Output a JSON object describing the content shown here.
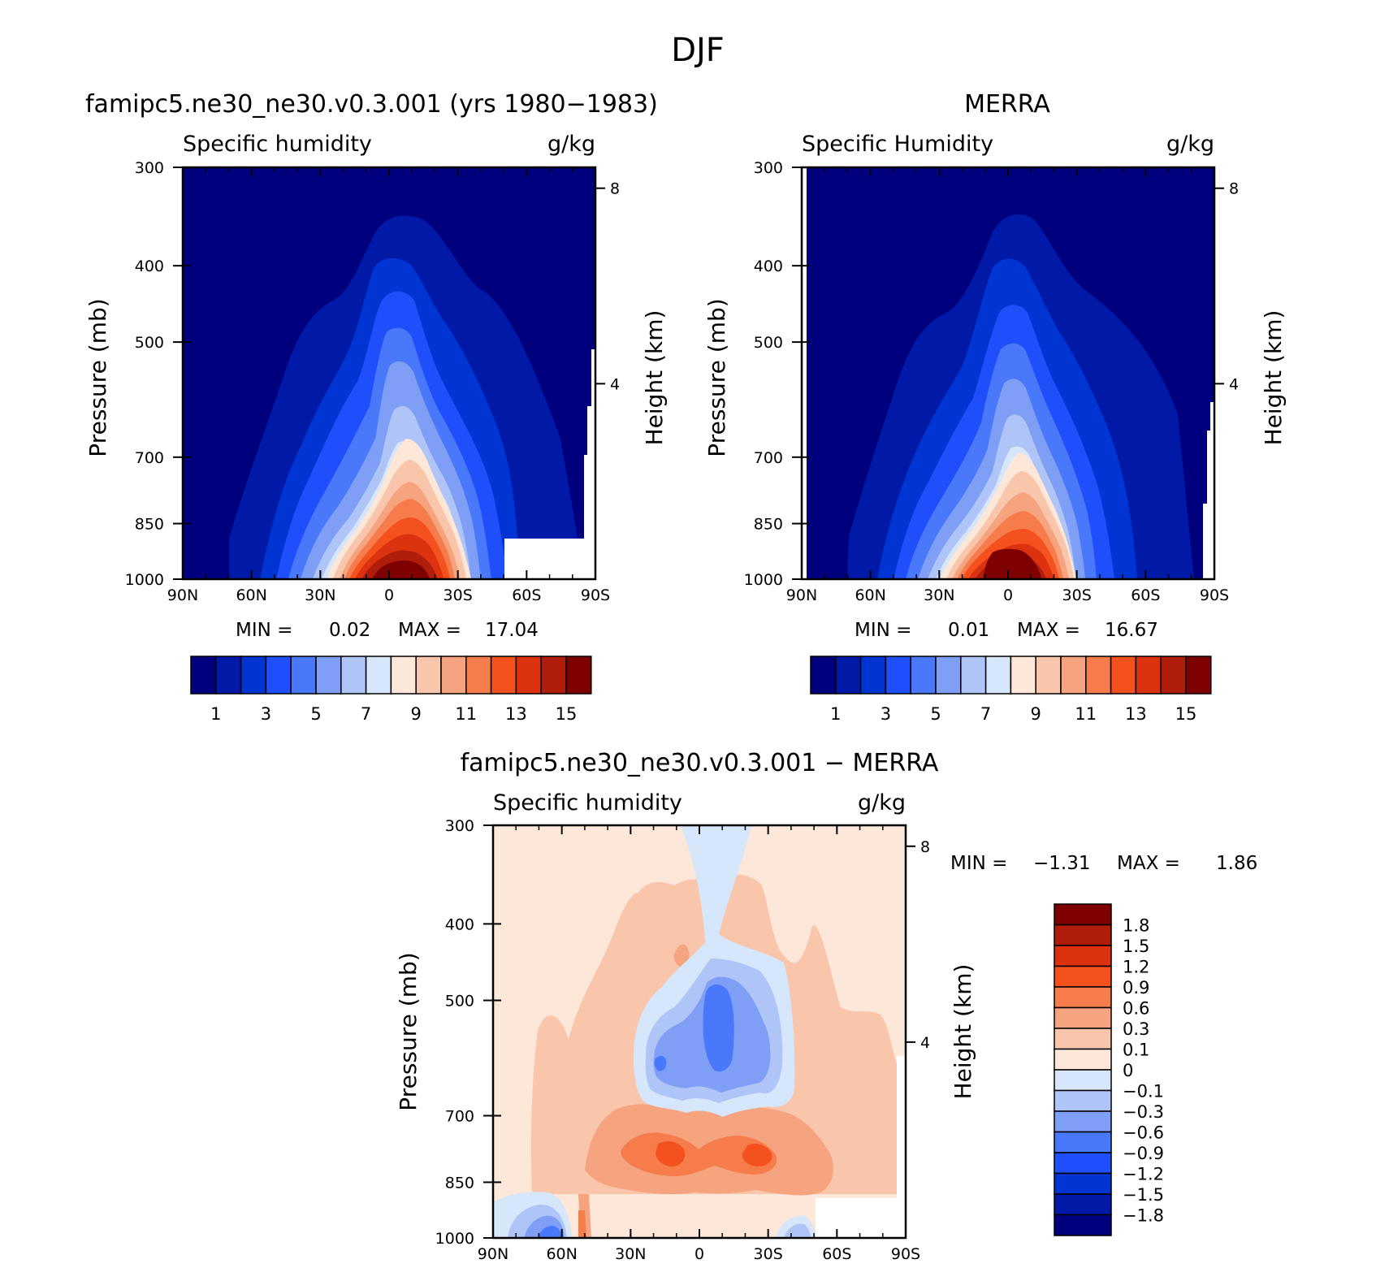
{
  "figure": {
    "title": "DJF"
  },
  "panels": {
    "model": {
      "title": "famipc5.ne30_ne30.v0.3.001 (yrs 1980−1983)",
      "left_label": "Specific humidity",
      "right_label": "g/kg",
      "min_label": "MIN =",
      "min_value": "0.02",
      "max_label": "MAX =",
      "max_value": "17.04"
    },
    "obs": {
      "title": "MERRA",
      "left_label": "Specific Humidity",
      "right_label": "g/kg",
      "min_label": "MIN =",
      "min_value": "0.01",
      "max_label": "MAX =",
      "max_value": "16.67"
    },
    "diff": {
      "title": "famipc5.ne30_ne30.v0.3.001 − MERRA",
      "left_label": "Specific humidity",
      "right_label": "g/kg",
      "min_label": "MIN =",
      "min_value": "−1.31",
      "max_label": "MAX =",
      "max_value": "1.86"
    }
  },
  "colorbars": {
    "abs": {
      "colors": [
        "#00007f",
        "#0019a6",
        "#0035d4",
        "#1f4ffa",
        "#4a78fa",
        "#7e9ff5",
        "#b0c5f7",
        "#d6e6fb",
        "#fde7d8",
        "#f9c5ab",
        "#f6a37f",
        "#f67c4c",
        "#f4511e",
        "#dd3210",
        "#b11d0b",
        "#7f0000"
      ],
      "labels": [
        "1",
        "3",
        "5",
        "7",
        "9",
        "11",
        "13",
        "15"
      ]
    },
    "diff": {
      "colors": [
        "#00007f",
        "#0019a6",
        "#0035d4",
        "#1f4ffa",
        "#4a78fa",
        "#7e9ff5",
        "#b0c5f7",
        "#d6e6fb",
        "#fde7d8",
        "#f9c5ab",
        "#f6a37f",
        "#f67c4c",
        "#f4511e",
        "#dd3210",
        "#b11d0b",
        "#7f0000"
      ],
      "labels": [
        "−1.8",
        "−1.5",
        "−1.2",
        "−0.9",
        "−0.6",
        "−0.3",
        "−0.1",
        "0",
        "0.1",
        "0.3",
        "0.6",
        "0.9",
        "1.2",
        "1.5",
        "1.8"
      ]
    }
  },
  "chart_data": [
    {
      "type": "heatmap",
      "name": "model",
      "title": "famipc5.ne30_ne30.v0.3.001 (yrs 1980−1983)",
      "variable": "Specific humidity",
      "units": "g/kg",
      "xlabel": "",
      "ylabel": "Pressure (mb)",
      "y2label": "Height (km)",
      "xticklabels": [
        "90N",
        "60N",
        "30N",
        "0",
        "30S",
        "60S",
        "90S"
      ],
      "yticks": [
        300,
        400,
        500,
        700,
        850,
        1000
      ],
      "y2ticks": [
        8,
        4
      ],
      "ylim": [
        1000,
        300
      ],
      "peak": {
        "lat": 0,
        "pressure": 1000,
        "value": 17.04
      },
      "min": 0.02,
      "max": 17.04
    },
    {
      "type": "heatmap",
      "name": "obs",
      "title": "MERRA",
      "variable": "Specific Humidity",
      "units": "g/kg",
      "xlabel": "",
      "ylabel": "Pressure (mb)",
      "y2label": "Height (km)",
      "xticklabels": [
        "90N",
        "60N",
        "30N",
        "0",
        "30S",
        "60S",
        "90S"
      ],
      "yticks": [
        300,
        400,
        500,
        700,
        850,
        1000
      ],
      "y2ticks": [
        8,
        4
      ],
      "ylim": [
        1000,
        300
      ],
      "peak": {
        "lat": 0,
        "pressure": 1000,
        "value": 16.67
      },
      "min": 0.01,
      "max": 16.67
    },
    {
      "type": "heatmap",
      "name": "diff",
      "title": "famipc5.ne30_ne30.v0.3.001 − MERRA",
      "variable": "Specific humidity",
      "units": "g/kg",
      "xlabel": "",
      "ylabel": "Pressure (mb)",
      "y2label": "Height (km)",
      "xticklabels": [
        "90N",
        "60N",
        "30N",
        "0",
        "30S",
        "60S",
        "90S"
      ],
      "yticks": [
        300,
        400,
        500,
        700,
        850,
        1000
      ],
      "y2ticks": [
        8,
        4
      ],
      "ylim": [
        1000,
        300
      ],
      "min": -1.31,
      "max": 1.86
    }
  ]
}
